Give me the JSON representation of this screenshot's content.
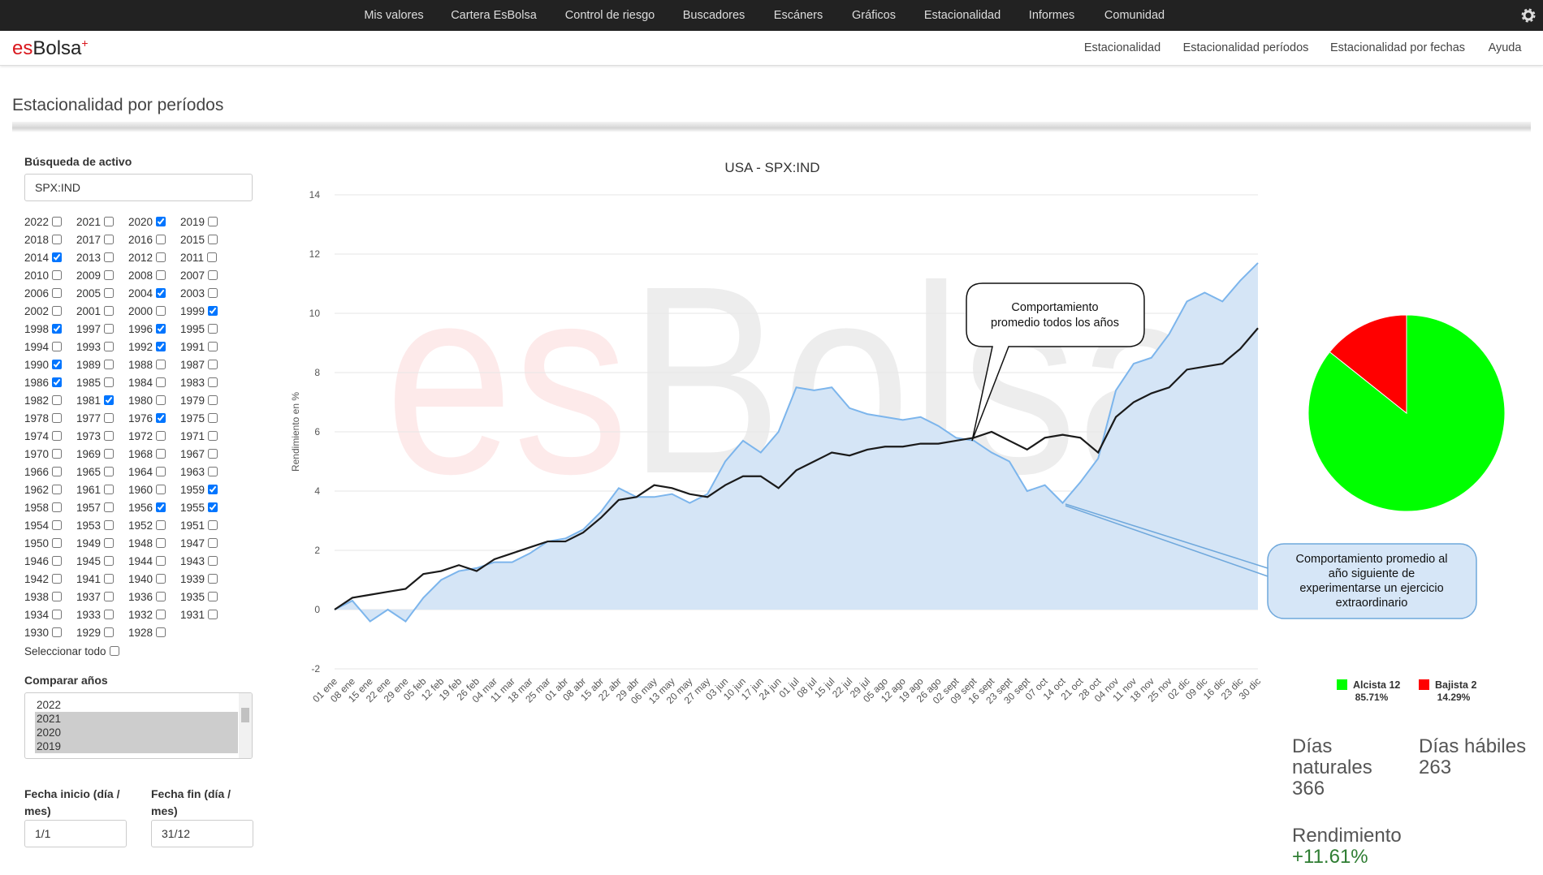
{
  "top_nav": [
    "Mis valores",
    "Cartera EsBolsa",
    "Control de riesgo",
    "Buscadores",
    "Escáners",
    "Gráficos",
    "Estacionalidad",
    "Informes",
    "Comunidad"
  ],
  "logo": {
    "es": "es",
    "bolsa": "Bolsa",
    "plus": "+"
  },
  "sub_nav": [
    "Estacionalidad",
    "Estacionalidad períodos",
    "Estacionalidad por fechas",
    "Ayuda"
  ],
  "page_title": "Estacionalidad por períodos",
  "sidebar": {
    "search_label": "Búsqueda de activo",
    "search_value": "SPX:IND",
    "years": [
      "2022",
      "2021",
      "2020",
      "2019",
      "2018",
      "2017",
      "2016",
      "2015",
      "2014",
      "2013",
      "2012",
      "2011",
      "2010",
      "2009",
      "2008",
      "2007",
      "2006",
      "2005",
      "2004",
      "2003",
      "2002",
      "2001",
      "2000",
      "1999",
      "1998",
      "1997",
      "1996",
      "1995",
      "1994",
      "1993",
      "1992",
      "1991",
      "1990",
      "1989",
      "1988",
      "1987",
      "1986",
      "1985",
      "1984",
      "1983",
      "1982",
      "1981",
      "1980",
      "1979",
      "1978",
      "1977",
      "1976",
      "1975",
      "1974",
      "1973",
      "1972",
      "1971",
      "1970",
      "1969",
      "1968",
      "1967",
      "1966",
      "1965",
      "1964",
      "1963",
      "1962",
      "1961",
      "1960",
      "1959",
      "1958",
      "1957",
      "1956",
      "1955",
      "1954",
      "1953",
      "1952",
      "1951",
      "1950",
      "1949",
      "1948",
      "1947",
      "1946",
      "1945",
      "1944",
      "1943",
      "1942",
      "1941",
      "1940",
      "1939",
      "1938",
      "1937",
      "1936",
      "1935",
      "1934",
      "1933",
      "1932",
      "1931",
      "1930",
      "1929",
      "1928"
    ],
    "checked": [
      false,
      false,
      true,
      false,
      false,
      false,
      false,
      false,
      true,
      false,
      false,
      false,
      false,
      false,
      false,
      false,
      false,
      false,
      true,
      false,
      false,
      false,
      false,
      true,
      true,
      false,
      true,
      false,
      false,
      false,
      true,
      false,
      true,
      false,
      false,
      false,
      true,
      false,
      false,
      false,
      false,
      true,
      false,
      false,
      false,
      false,
      true,
      false,
      false,
      false,
      false,
      false,
      false,
      false,
      false,
      false,
      false,
      false,
      false,
      false,
      false,
      false,
      false,
      true,
      false,
      false,
      true,
      true,
      false,
      false,
      false,
      false,
      false,
      false,
      false,
      false,
      false,
      false,
      false,
      false,
      false,
      false,
      false,
      false,
      false,
      false,
      false,
      false,
      false,
      false,
      false,
      false,
      false,
      false,
      false
    ],
    "select_all": "Seleccionar todo",
    "compare_label": "Comparar años",
    "compare_options": [
      {
        "label": "2022",
        "selected": false
      },
      {
        "label": "2021",
        "selected": true
      },
      {
        "label": "2020",
        "selected": true
      },
      {
        "label": "2019",
        "selected": true
      }
    ],
    "start_label": "Fecha inicio (día / mes)",
    "start_value": "1/1",
    "end_label": "Fecha fin (día / mes)",
    "end_value": "31/12"
  },
  "chart_data": [
    {
      "type": "line",
      "title": "USA - SPX:IND",
      "ylabel": "Rendimiento en %",
      "watermark": [
        "es",
        "Bolsa"
      ],
      "categories": [
        "01 ene",
        "08 ene",
        "15 ene",
        "22 ene",
        "29 ene",
        "05 feb",
        "12 feb",
        "19 feb",
        "26 feb",
        "04 mar",
        "11 mar",
        "18 mar",
        "25 mar",
        "01 abr",
        "08 abr",
        "15 abr",
        "22 abr",
        "29 abr",
        "06 may",
        "13 may",
        "20 may",
        "27 may",
        "03 jun",
        "10 jun",
        "17 jun",
        "24 jun",
        "01 jul",
        "08 jul",
        "15 jul",
        "22 jul",
        "29 jul",
        "05 ago",
        "12 ago",
        "19 ago",
        "26 ago",
        "02 sept",
        "09 sept",
        "16 sept",
        "23 sept",
        "30 sept",
        "07 oct",
        "14 oct",
        "21 oct",
        "28 oct",
        "04 nov",
        "11 nov",
        "18 nov",
        "25 nov",
        "02 dic",
        "09 dic",
        "16 dic",
        "23 dic",
        "30 dic"
      ],
      "series": [
        {
          "color": "#7cb5ec",
          "fill": "#d5e5f6",
          "values": [
            0,
            0.3,
            -0.4,
            0,
            -0.4,
            0.4,
            1.0,
            1.3,
            1.4,
            1.6,
            1.6,
            1.9,
            2.3,
            2.4,
            2.7,
            3.3,
            4.1,
            3.8,
            3.8,
            3.9,
            3.6,
            3.9,
            5.0,
            5.7,
            5.3,
            6.0,
            7.5,
            7.4,
            7.5,
            6.8,
            6.6,
            6.5,
            6.4,
            6.5,
            6.2,
            5.8,
            5.7,
            5.3,
            5.0,
            4.0,
            4.2,
            3.6,
            4.3,
            5.1,
            7.4,
            8.3,
            8.5,
            9.3,
            10.4,
            10.7,
            10.4,
            11.1,
            11.7
          ]
        },
        {
          "color": "#1a1a1a",
          "values": [
            0,
            0.4,
            0.5,
            0.6,
            0.7,
            1.2,
            1.3,
            1.5,
            1.3,
            1.7,
            1.9,
            2.1,
            2.3,
            2.3,
            2.6,
            3.1,
            3.7,
            3.8,
            4.2,
            4.1,
            3.9,
            3.8,
            4.2,
            4.5,
            4.5,
            4.1,
            4.7,
            5.0,
            5.3,
            5.2,
            5.4,
            5.5,
            5.5,
            5.6,
            5.6,
            5.7,
            5.8,
            6.0,
            5.7,
            5.4,
            5.8,
            5.9,
            5.8,
            5.3,
            6.5,
            7.0,
            7.3,
            7.5,
            8.1,
            8.2,
            8.3,
            8.8,
            9.5
          ]
        }
      ],
      "ylim": [
        -2,
        14
      ],
      "yticks": [
        -2,
        0,
        2,
        4,
        6,
        8,
        10,
        12,
        14
      ],
      "grid": true,
      "annotations": [
        {
          "lines": [
            "Comportamiento",
            "promedio todos los años"
          ]
        },
        {
          "lines": [
            "Comportamiento promedio al",
            "año siguiente de",
            "experimentarse un ejercicio",
            "extraordinario"
          ]
        }
      ]
    },
    {
      "type": "pie",
      "categories": [
        "Alcista 12",
        "Bajista 2"
      ],
      "values": [
        85.71,
        14.29
      ],
      "value_labels": [
        "85.71%",
        "14.29%"
      ],
      "colors": [
        "#00ff00",
        "#ff0000"
      ]
    }
  ],
  "stats": [
    {
      "label": "Días naturales",
      "value": "366"
    },
    {
      "label": "Días hábiles",
      "value": "263"
    },
    {
      "label": "Rendimiento",
      "value": "+11.61%"
    }
  ]
}
